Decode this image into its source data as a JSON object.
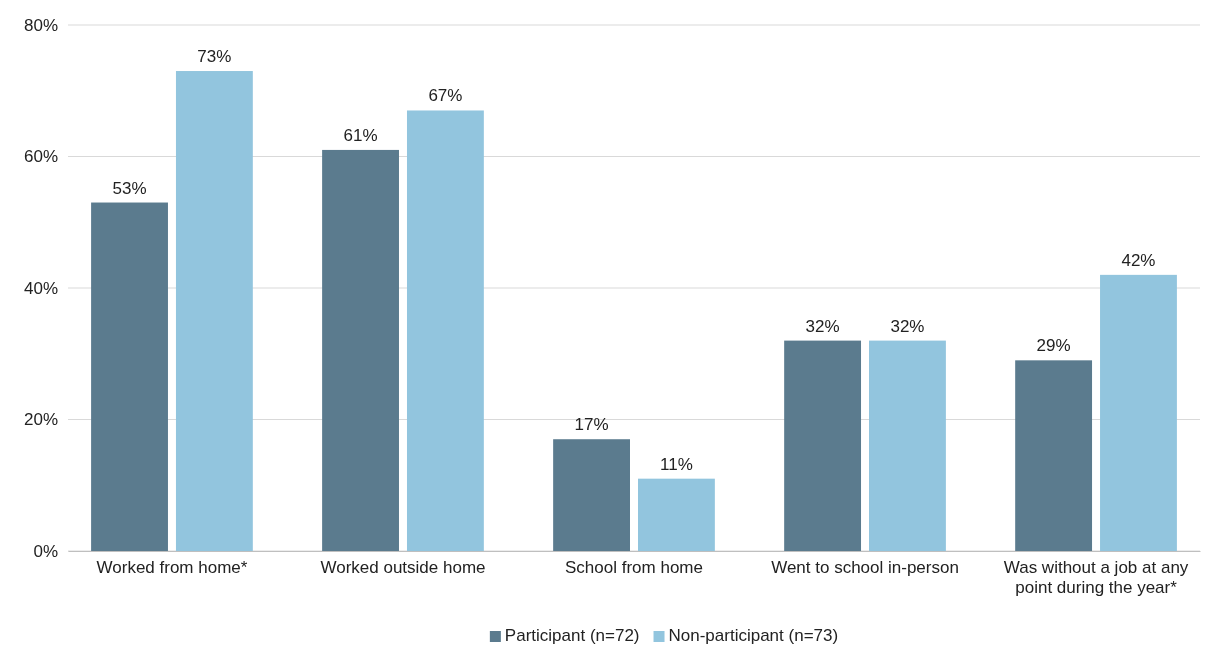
{
  "chart_data": {
    "type": "bar",
    "categories": [
      "Worked from home*",
      "Worked outside home",
      "School from home",
      "Went to school in-person",
      "Was without a job at any point during the year*"
    ],
    "series": [
      {
        "name": "Participant (n=72)",
        "color": "#5b7b8e",
        "values": [
          53,
          61,
          17,
          32,
          29
        ],
        "value_labels": [
          "53%",
          "61%",
          "17%",
          "32%",
          "29%"
        ]
      },
      {
        "name": "Non-participant (n=73)",
        "color": "#92c5de",
        "values": [
          73,
          67,
          11,
          32,
          42
        ],
        "value_labels": [
          "73%",
          "67%",
          "11%",
          "32%",
          "42%"
        ]
      }
    ],
    "ylim": [
      0,
      80
    ],
    "yticks": [
      {
        "value": 0,
        "label": "0%"
      },
      {
        "value": 20,
        "label": "20%"
      },
      {
        "value": 40,
        "label": "40%"
      },
      {
        "value": 60,
        "label": "60%"
      },
      {
        "value": 80,
        "label": "80%"
      }
    ],
    "grid": "y",
    "legend": "bottom"
  }
}
